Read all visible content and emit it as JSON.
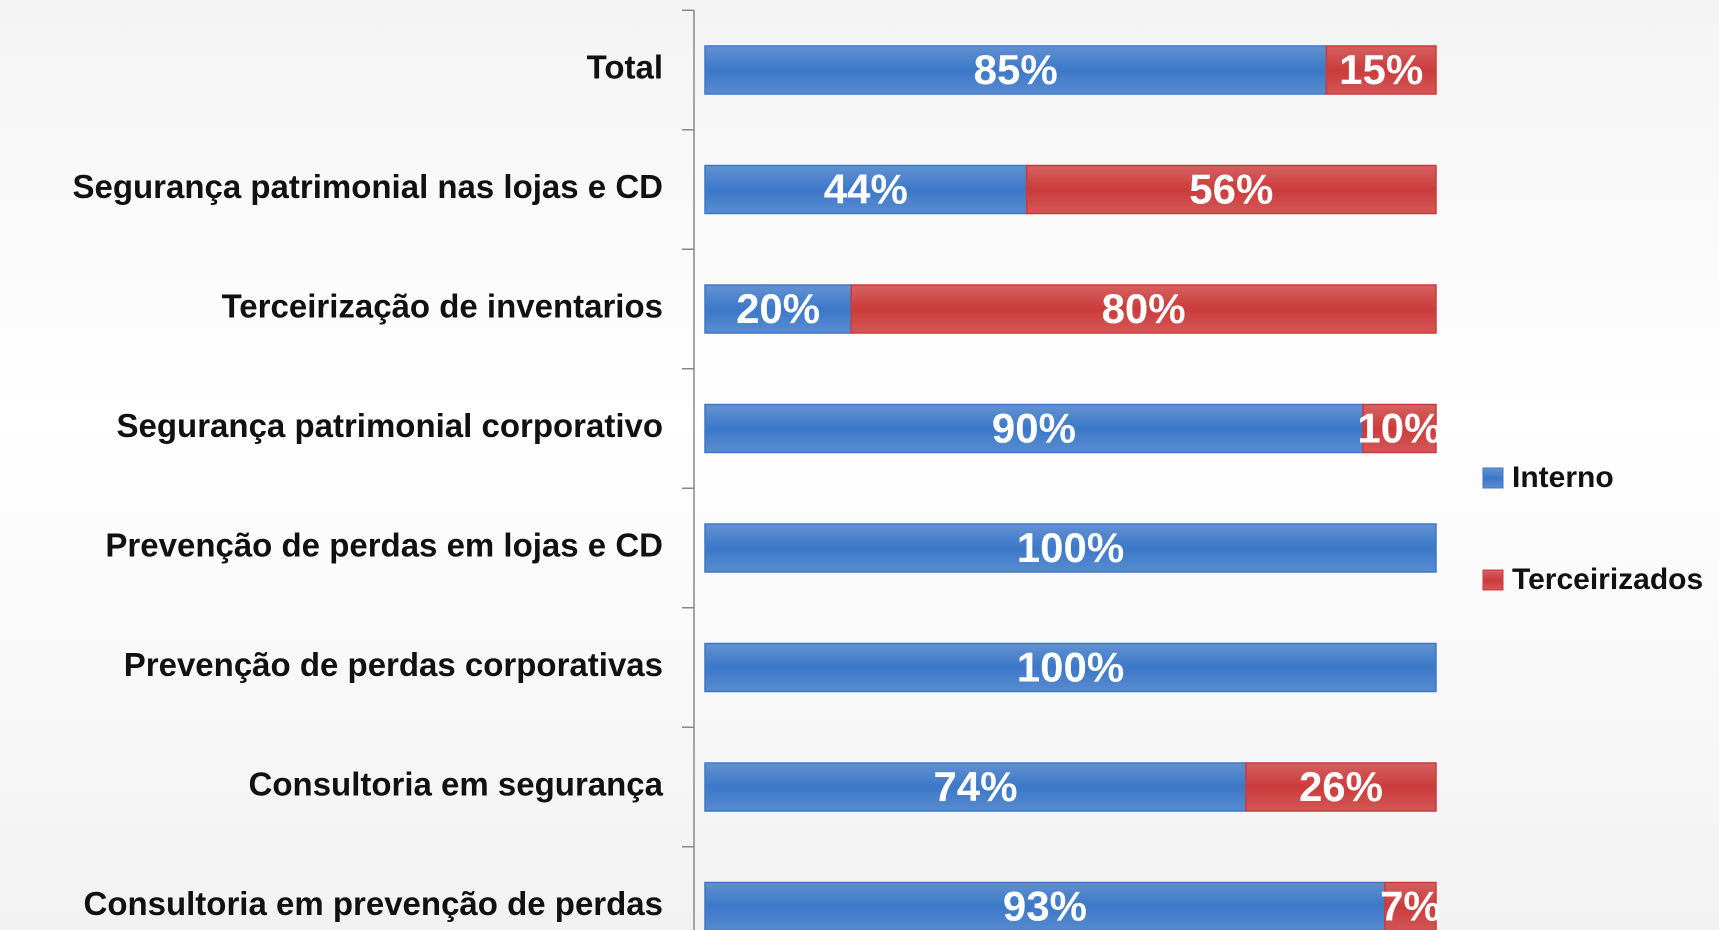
{
  "chart_data": {
    "type": "stacked_barh",
    "categories": [
      "Total",
      "Segurança patrimonial nas lojas e CD",
      "Terceirização de inventarios",
      "Segurança patrimonial corporativo",
      "Prevenção de perdas em lojas e CD",
      "Prevenção de perdas corporativas",
      "Consultoria em segurança",
      "Consultoria em prevenção de perdas"
    ],
    "series": [
      {
        "name": "Interno",
        "color": "#3c78c8",
        "values": [
          85,
          44,
          20,
          90,
          100,
          100,
          74,
          93
        ],
        "value_labels": [
          "85%",
          "44%",
          "20%",
          "90%",
          "100%",
          "100%",
          "74%",
          "93%"
        ]
      },
      {
        "name": "Terceirizados",
        "color": "#cc3b3b",
        "values": [
          15,
          56,
          80,
          10,
          0,
          0,
          26,
          7
        ],
        "value_labels": [
          "15%",
          "56%",
          "80%",
          "10%",
          null,
          null,
          "26%",
          "7%"
        ]
      }
    ],
    "xlim": [
      0,
      100
    ],
    "legend": "right"
  }
}
